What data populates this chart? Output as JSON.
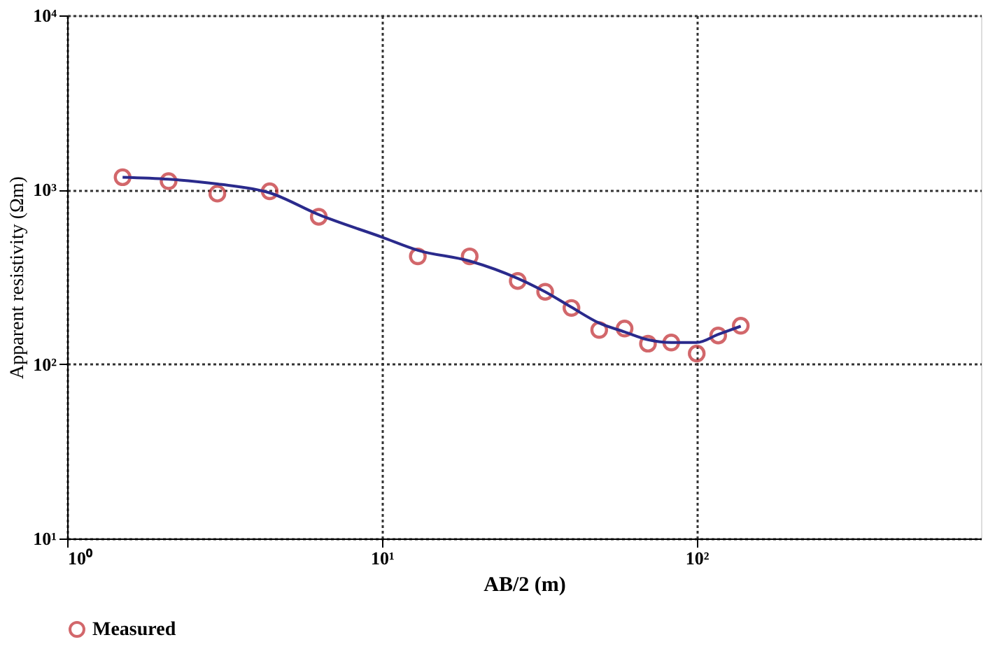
{
  "chart_data": {
    "type": "scatter",
    "xlabel": "AB/2 (m)",
    "ylabel": "Apparent resistivity (Ωm)",
    "log": "xy",
    "xlim": [
      1,
      800
    ],
    "ylim": [
      10,
      10000
    ],
    "xticks": [
      {
        "value": 1,
        "label": "10⁰"
      },
      {
        "value": 10,
        "label": "10¹"
      },
      {
        "value": 100,
        "label": "10²"
      }
    ],
    "yticks": [
      {
        "value": 10,
        "label": "10¹"
      },
      {
        "value": 100,
        "label": "10²"
      },
      {
        "value": 1000,
        "label": "10³"
      },
      {
        "value": 10000,
        "label": "10⁴"
      }
    ],
    "grid": true,
    "legend": "bottom",
    "series": [
      {
        "name": "Measured",
        "marker": "circle",
        "color": "#c0282d",
        "x": [
          1.5,
          2.1,
          3.0,
          4.4,
          6.3,
          13,
          19,
          27,
          33,
          40,
          49,
          59,
          70,
          83,
          100,
          117,
          138
        ],
        "values": [
          1180,
          1120,
          950,
          980,
          700,
          415,
          415,
          300,
          260,
          210,
          157,
          160,
          131,
          133,
          115,
          146,
          166
        ]
      },
      {
        "type": "line",
        "marker": "none",
        "line_style": "solid",
        "color": "#2a2a8c",
        "x": [
          1.5,
          2.1,
          3.0,
          4.4,
          6.3,
          10,
          13,
          19,
          27,
          33,
          40,
          49,
          59,
          70,
          83,
          100,
          117,
          138
        ],
        "values": [
          1180,
          1150,
          1080,
          960,
          720,
          535,
          450,
          390,
          310,
          260,
          212,
          172,
          153,
          138,
          133,
          133,
          148,
          165
        ]
      }
    ]
  }
}
